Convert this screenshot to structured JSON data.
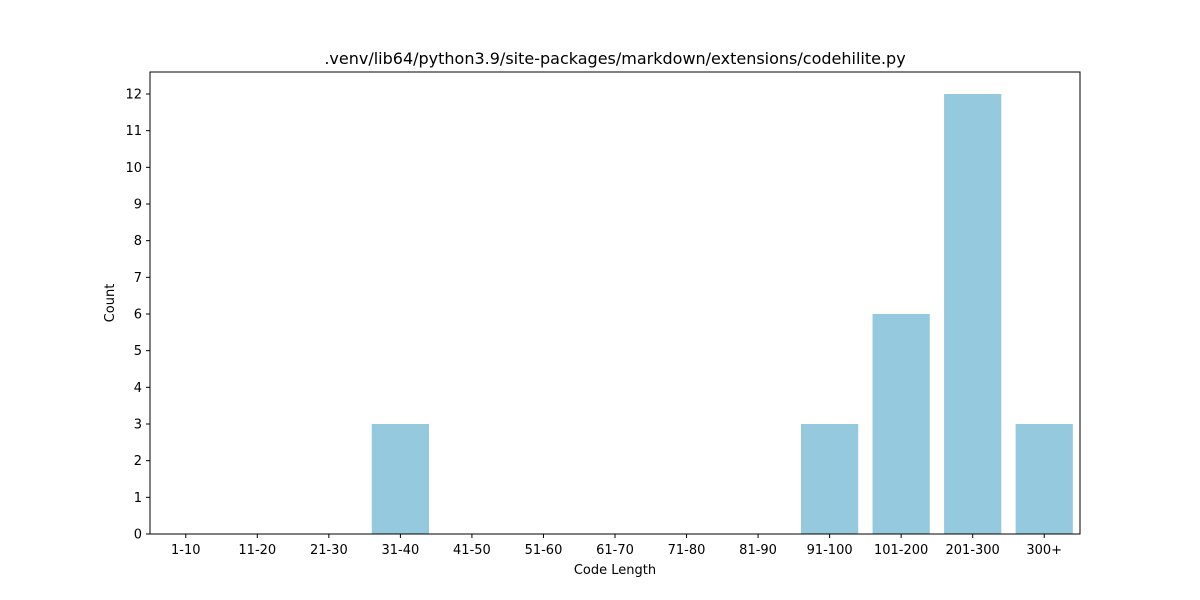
{
  "chart_data": {
    "type": "bar",
    "title": ".venv/lib64/python3.9/site-packages/markdown/extensions/codehilite.py",
    "xlabel": "Code Length",
    "ylabel": "Count",
    "categories": [
      "1-10",
      "11-20",
      "21-30",
      "31-40",
      "41-50",
      "51-60",
      "61-70",
      "71-80",
      "81-90",
      "91-100",
      "101-200",
      "201-300",
      "300+"
    ],
    "values": [
      0,
      0,
      0,
      3,
      0,
      0,
      0,
      0,
      0,
      3,
      6,
      12,
      3
    ],
    "ylim": [
      0,
      12.6
    ],
    "yticks": [
      0,
      1,
      2,
      3,
      4,
      5,
      6,
      7,
      8,
      9,
      10,
      11,
      12
    ],
    "grid": false,
    "legend": "none",
    "bar_color": "#95c9de"
  }
}
